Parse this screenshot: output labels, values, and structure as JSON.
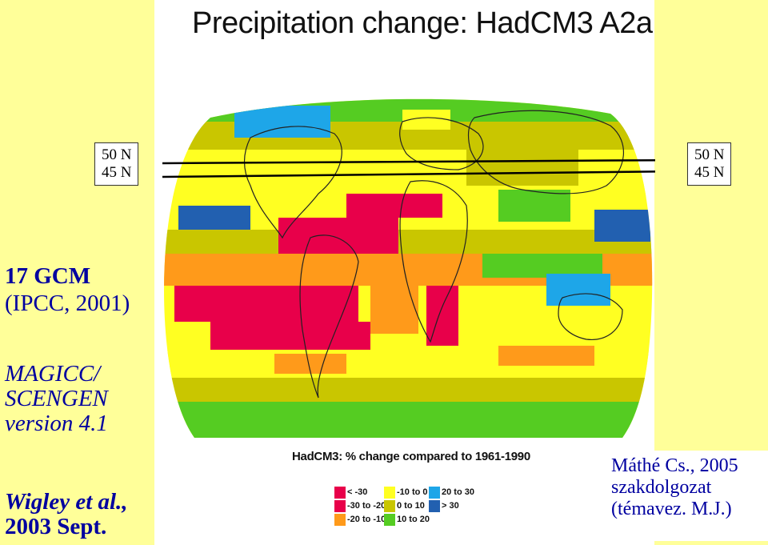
{
  "map": {
    "title": "Precipitation change: HadCM3 A2a",
    "legend_title": "HadCM3: % change compared to 1961-1990",
    "legend": [
      {
        "label": "< -30",
        "color": "#e8004a"
      },
      {
        "label": "-30 to -20",
        "color": "#e8004a"
      },
      {
        "label": "-20 to -10",
        "color": "#ff9a1a"
      },
      {
        "label": "-10 to 0",
        "color": "#ffff22"
      },
      {
        "label": "0 to 10",
        "color": "#c9c600"
      },
      {
        "label": "10 to 20",
        "color": "#55cc22"
      },
      {
        "label": "20 to 30",
        "color": "#1ea6e8"
      },
      {
        "label": "> 30",
        "color": "#2260b0"
      }
    ]
  },
  "latitudes": {
    "left": {
      "line1": "50 N",
      "line2": "45 N"
    },
    "right": {
      "line1": "50 N",
      "line2": "45 N"
    }
  },
  "sidebar": {
    "gcm_title": "17 GCM",
    "gcm_source": "(IPCC, 2001)",
    "model_line1": "MAGICC/",
    "model_line2": "SCENGEN",
    "model_line3": "version 4.1",
    "ref_line1": "Wigley et al.,",
    "ref_line2": "2003 Sept."
  },
  "credit": {
    "line1": "Máthé Cs., 2005",
    "line2": "szakdolgozat",
    "line3": "(témavez. M.J.)"
  },
  "colors": {
    "background": "#ffff99",
    "text_blue": "#0000a0"
  }
}
